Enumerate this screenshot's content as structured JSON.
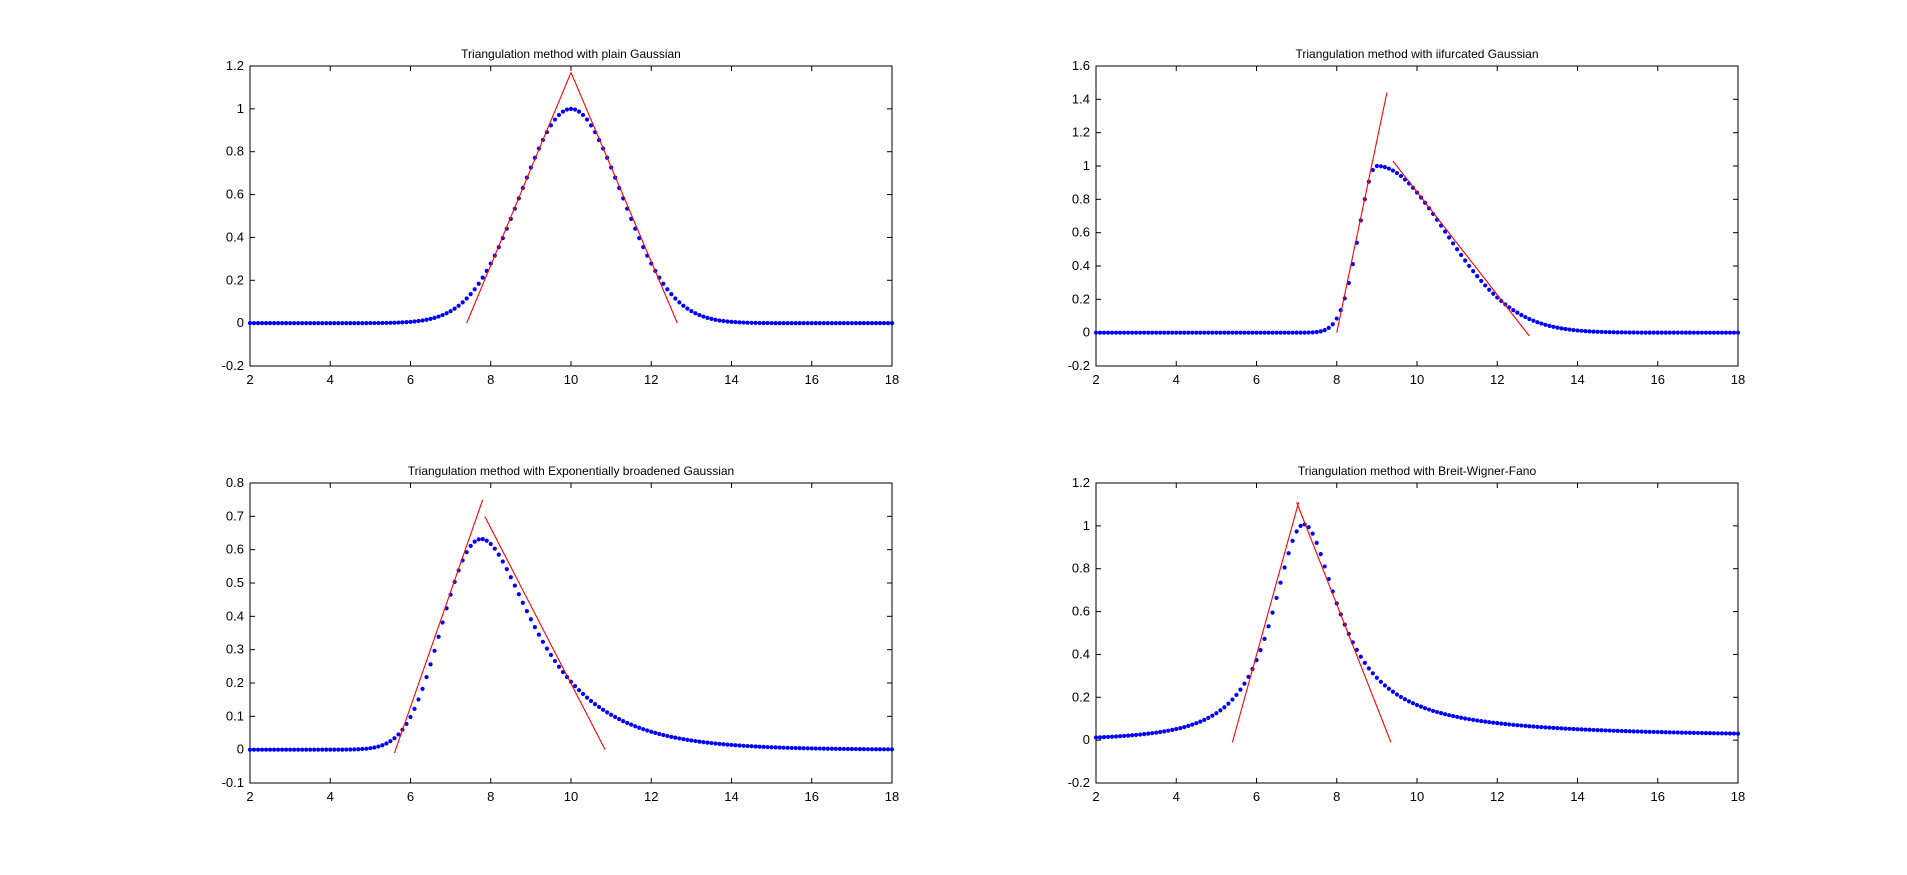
{
  "colors": {
    "markers": "#0000ff",
    "tangent_lines": "#ff0000",
    "axes": "#000000",
    "background": "#ffffff"
  },
  "chart_data": [
    {
      "type": "line",
      "title": "Triangulation method with plain Gaussian",
      "xlabel": "",
      "ylabel": "",
      "xlim": [
        2,
        18
      ],
      "ylim": [
        -0.2,
        1.2
      ],
      "xticks": [
        2,
        4,
        6,
        8,
        10,
        12,
        14,
        16,
        18
      ],
      "yticks": [
        -0.2,
        0,
        0.2,
        0.4,
        0.6,
        0.8,
        1,
        1.2
      ],
      "ytick_labels": [
        "-0.2",
        "0",
        "0.2",
        "0.4",
        "0.6",
        "0.8",
        "1",
        "1.2"
      ],
      "grid": false,
      "marker_color": "#0000ff",
      "curve": {
        "model": "gaussian",
        "center": 10,
        "sigma": 1.25,
        "amplitude": 1.0,
        "x_step": 0.1
      },
      "tangent_lines": [
        {
          "x": [
            7.4,
            10.0
          ],
          "y": [
            0.0,
            1.17
          ]
        },
        {
          "x": [
            10.0,
            12.65
          ],
          "y": [
            1.17,
            0.0
          ]
        }
      ]
    },
    {
      "type": "line",
      "title": "Triangulation method with iifurcated Gaussian",
      "xlabel": "",
      "ylabel": "",
      "xlim": [
        2,
        18
      ],
      "ylim": [
        -0.2,
        1.6
      ],
      "xticks": [
        2,
        4,
        6,
        8,
        10,
        12,
        14,
        16,
        18
      ],
      "yticks": [
        -0.2,
        0,
        0.2,
        0.4,
        0.6,
        0.8,
        1,
        1.2,
        1.4,
        1.6
      ],
      "ytick_labels": [
        "-0.2",
        "0",
        "0.2",
        "0.4",
        "0.6",
        "0.8",
        "1",
        "1.2",
        "1.4",
        "1.6"
      ],
      "grid": false,
      "marker_color": "#0000ff",
      "curve": {
        "model": "bifurcated_gaussian",
        "center": 9,
        "sigma_left": 0.45,
        "sigma_right": 1.7,
        "amplitude": 1.0,
        "x_step": 0.1
      },
      "tangent_lines": [
        {
          "x": [
            8.0,
            9.25
          ],
          "y": [
            0.0,
            1.44
          ]
        },
        {
          "x": [
            9.4,
            12.8
          ],
          "y": [
            1.03,
            -0.02
          ]
        }
      ]
    },
    {
      "type": "line",
      "title": "Triangulation method with Exponentially broadened Gaussian",
      "xlabel": "",
      "ylabel": "",
      "xlim": [
        2,
        18
      ],
      "ylim": [
        -0.1,
        0.8
      ],
      "xticks": [
        2,
        4,
        6,
        8,
        10,
        12,
        14,
        16,
        18
      ],
      "yticks": [
        -0.1,
        0,
        0.1,
        0.2,
        0.3,
        0.4,
        0.5,
        0.6,
        0.7,
        0.8
      ],
      "ytick_labels": [
        "-0.1",
        "0",
        "0.1",
        "0.2",
        "0.3",
        "0.4",
        "0.5",
        "0.6",
        "0.7",
        "0.8"
      ],
      "grid": false,
      "marker_color": "#0000ff",
      "curve": {
        "model": "exgaussian",
        "mu": 7,
        "sigma": 0.75,
        "tau": 1.5,
        "peak": 0.632,
        "x_step": 0.1
      },
      "tangent_lines": [
        {
          "x": [
            5.6,
            7.8
          ],
          "y": [
            -0.01,
            0.75
          ]
        },
        {
          "x": [
            7.85,
            10.85
          ],
          "y": [
            0.7,
            0.0
          ]
        }
      ]
    },
    {
      "type": "line",
      "title": "Triangulation method with Breit-Wigner-Fano",
      "xlabel": "",
      "ylabel": "",
      "xlim": [
        2,
        18
      ],
      "ylim": [
        -0.2,
        1.2
      ],
      "xticks": [
        2,
        4,
        6,
        8,
        10,
        12,
        14,
        16,
        18
      ],
      "yticks": [
        -0.2,
        0,
        0.2,
        0.4,
        0.6,
        0.8,
        1,
        1.2
      ],
      "ytick_labels": [
        "-0.2",
        "0",
        "0.2",
        "0.4",
        "0.6",
        "0.8",
        "1",
        "1.2"
      ],
      "grid": false,
      "marker_color": "#0000ff",
      "curve": {
        "model": "breit_wigner_fano",
        "center": 7.1,
        "half_width": 1.0,
        "q": 12,
        "amplitude": 1.0,
        "x_step": 0.1
      },
      "tangent_lines": [
        {
          "x": [
            5.4,
            7.05
          ],
          "y": [
            -0.01,
            1.11
          ]
        },
        {
          "x": [
            7.0,
            9.35
          ],
          "y": [
            1.11,
            -0.01
          ]
        }
      ]
    }
  ]
}
